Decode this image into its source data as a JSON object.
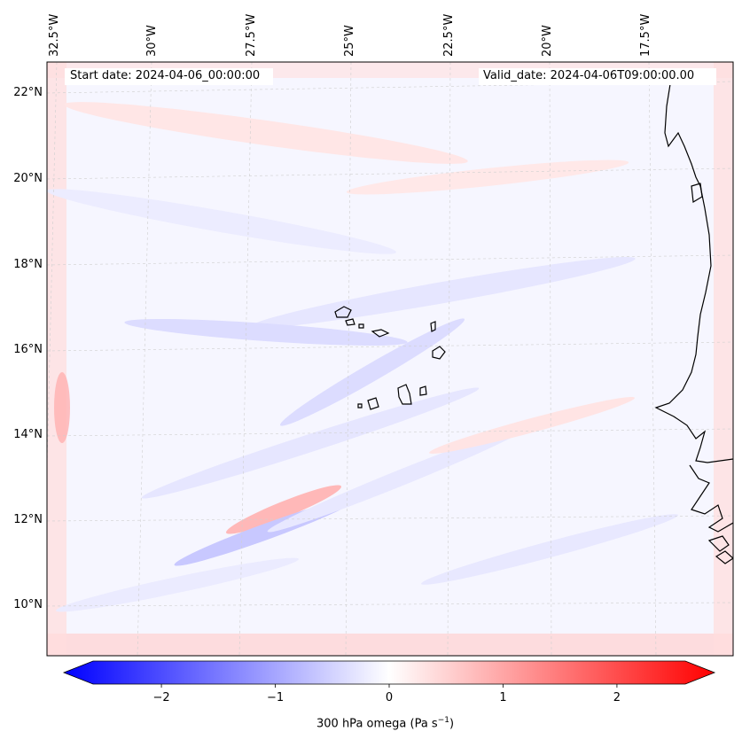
{
  "map": {
    "start_date": "Start date: 2024-04-06_00:00:00",
    "valid_date": "Valid_date: 2024-04-06T09:00:00.00",
    "lon_labels": [
      "32.5°W",
      "30°W",
      "27.5°W",
      "25°W",
      "22.5°W",
      "20°W",
      "17.5°W"
    ],
    "lat_labels": [
      "22°N",
      "20°N",
      "18°N",
      "16°N",
      "14°N",
      "12°N",
      "10°N"
    ],
    "field": "300 hPa omega",
    "projection_note": "Lambert conformal",
    "grid": true
  },
  "colorbar": {
    "label_text": "300 hPa omega (Pa s",
    "label_exp": "−1",
    "label_close": ")",
    "ticks": [
      "−2",
      "−1",
      "0",
      "1",
      "2"
    ],
    "tick_values": [
      -2,
      -1,
      0,
      1,
      2
    ],
    "range": [
      -2.6,
      2.6
    ],
    "extend": "both",
    "colormap": "bwr",
    "color_low": "#0000ff",
    "color_mid": "#ffffff",
    "color_high": "#ff0000"
  }
}
